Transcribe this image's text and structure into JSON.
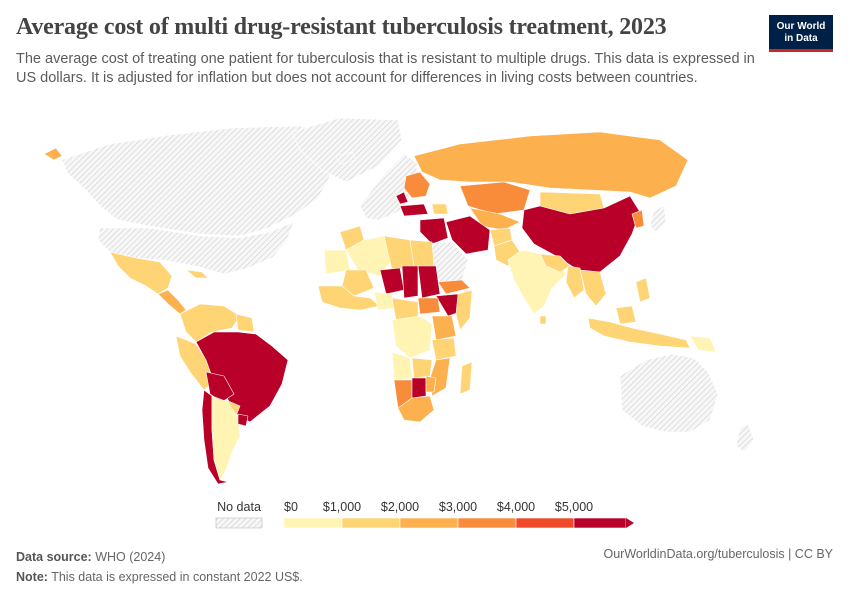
{
  "header": {
    "title": "Average cost of multi drug-resistant tuberculosis treatment, 2023",
    "subtitle": "The average cost of treating one patient for tuberculosis that is resistant to multiple drugs. This data is expressed in US dollars. It is adjusted for inflation but does not account for differences in living costs between countries."
  },
  "logo": {
    "line1": "Our World",
    "line2": "in Data"
  },
  "legend": {
    "no_data_label": "No data",
    "bins": [
      {
        "label": "$0",
        "color": "#fff4b3"
      },
      {
        "label": "$1,000",
        "color": "#fed474"
      },
      {
        "label": "$2,000",
        "color": "#fdb04e"
      },
      {
        "label": "$3,000",
        "color": "#f98c3b"
      },
      {
        "label": "$4,000",
        "color": "#ef4a2a"
      },
      {
        "label": "$5,000",
        "color": "#b80028"
      }
    ]
  },
  "colors": {
    "no_data": "#e8e8e8",
    "border": "#ffffff",
    "bin_0_1000": "#fff4b3",
    "bin_1000_2000": "#fed474",
    "bin_2000_3000": "#fdb04e",
    "bin_3000_4000": "#f98c3b",
    "bin_4000_5000": "#ef4a2a",
    "bin_5000_plus": "#b80028"
  },
  "footer": {
    "source_label": "Data source:",
    "source_value": "WHO (2024)",
    "note_label": "Note:",
    "note_value": "This data is expressed in constant 2022 US$.",
    "url_text": "OurWorldinData.org/tuberculosis | CC BY"
  }
}
